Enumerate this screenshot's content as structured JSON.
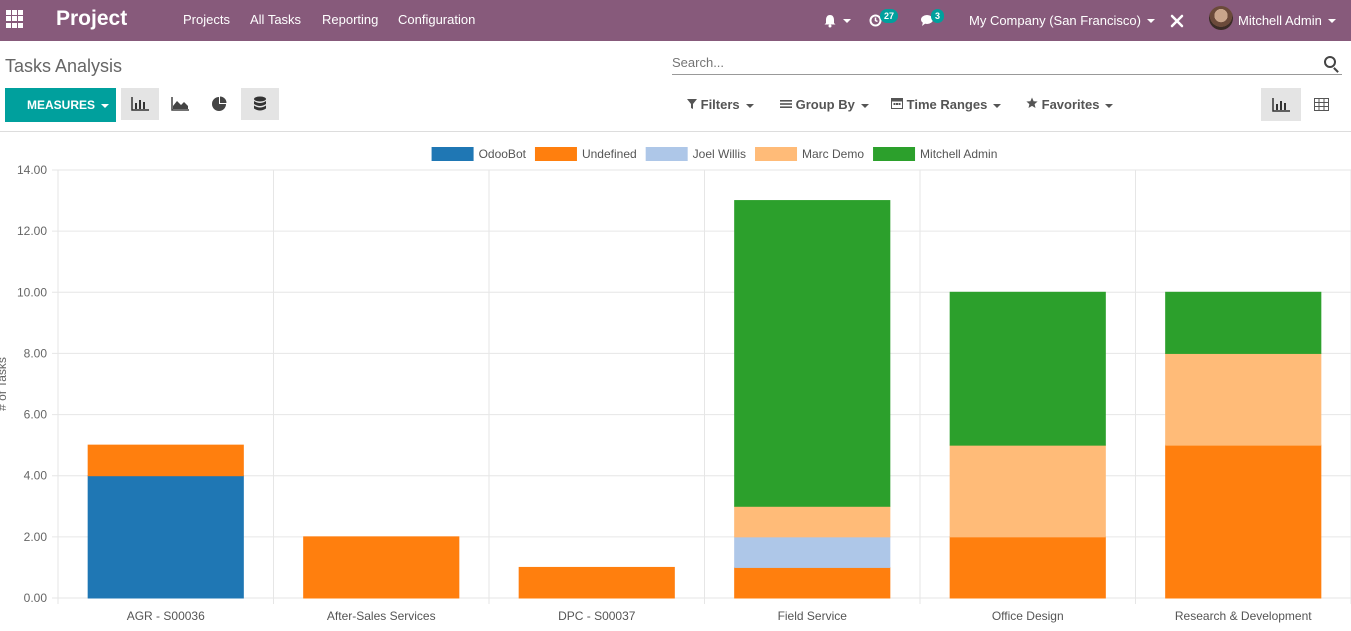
{
  "navbar": {
    "app_name": "Project",
    "menus": [
      "Projects",
      "All Tasks",
      "Reporting",
      "Configuration"
    ],
    "activity_count": "27",
    "messages_count": "3",
    "company": "My Company (San Francisco)",
    "user": "Mitchell Admin"
  },
  "page": {
    "title": "Tasks Analysis",
    "search_placeholder": "Search...",
    "measures_label": "MEASURES",
    "filters_label": "Filters",
    "groupby_label": "Group By",
    "timeranges_label": "Time Ranges",
    "favorites_label": "Favorites"
  },
  "colors": {
    "navbar": "#875a7b",
    "primary": "#00a09d"
  },
  "chart_data": {
    "type": "bar",
    "stacked": true,
    "ylabel": "# of Tasks",
    "ylim": [
      0,
      14
    ],
    "yticks": [
      "0.00",
      "2.00",
      "4.00",
      "6.00",
      "8.00",
      "10.00",
      "12.00",
      "14.00"
    ],
    "grid": true,
    "legend_position": "top",
    "categories": [
      "AGR - S00036",
      "After-Sales Services",
      "DPC - S00037",
      "Field Service",
      "Office Design",
      "Research & Development"
    ],
    "series": [
      {
        "name": "OdooBot",
        "color": "#1f77b4",
        "values": [
          4,
          0,
          0,
          0,
          0,
          0
        ]
      },
      {
        "name": "Undefined",
        "color": "#ff7f0e",
        "values": [
          1,
          2,
          1,
          1,
          2,
          5
        ]
      },
      {
        "name": "Joel Willis",
        "color": "#aec7e8",
        "values": [
          0,
          0,
          0,
          1,
          0,
          0
        ]
      },
      {
        "name": "Marc Demo",
        "color": "#ffbb78",
        "values": [
          0,
          0,
          0,
          1,
          3,
          3
        ]
      },
      {
        "name": "Mitchell Admin",
        "color": "#2ca02c",
        "values": [
          0,
          0,
          0,
          10,
          5,
          2
        ]
      }
    ]
  }
}
